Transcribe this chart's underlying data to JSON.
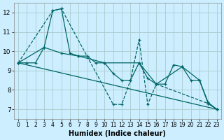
{
  "xlabel": "Humidex (Indice chaleur)",
  "background_color": "#cceeff",
  "grid_color": "#aacccc",
  "line_color": "#006666",
  "xlim": [
    -0.5,
    23.5
  ],
  "ylim": [
    6.5,
    12.5
  ],
  "xticks": [
    0,
    1,
    2,
    3,
    4,
    5,
    6,
    7,
    8,
    9,
    10,
    11,
    12,
    13,
    14,
    15,
    16,
    17,
    18,
    19,
    20,
    21,
    22,
    23
  ],
  "yticks": [
    7,
    8,
    9,
    10,
    11,
    12
  ],
  "series": [
    {
      "x": [
        0,
        1,
        2,
        3,
        4,
        5,
        6,
        7,
        8,
        9,
        10,
        11,
        12,
        13,
        14,
        15,
        16,
        17,
        18,
        19,
        20,
        21,
        22,
        23
      ],
      "y": [
        9.4,
        9.4,
        9.4,
        10.2,
        12.1,
        12.2,
        9.9,
        9.75,
        9.75,
        9.4,
        9.4,
        8.85,
        8.5,
        8.5,
        9.4,
        8.6,
        8.3,
        8.3,
        9.3,
        9.2,
        8.5,
        8.5,
        7.3,
        7.0
      ],
      "linestyle": "-",
      "marker": "+",
      "markersize": 3
    },
    {
      "x": [
        0,
        4,
        5,
        11,
        12,
        13,
        14,
        15,
        16,
        22,
        23
      ],
      "y": [
        9.4,
        12.1,
        12.2,
        7.25,
        7.25,
        8.5,
        10.6,
        7.25,
        8.3,
        7.3,
        7.0
      ],
      "linestyle": "--",
      "marker": "+",
      "markersize": 3
    },
    {
      "x": [
        0,
        23
      ],
      "y": [
        9.4,
        7.0
      ],
      "linestyle": "-",
      "marker": "None",
      "markersize": 0
    },
    {
      "x": [
        0,
        3,
        5,
        7,
        10,
        14,
        16,
        19,
        21,
        22,
        23
      ],
      "y": [
        9.4,
        10.2,
        9.9,
        9.75,
        9.4,
        9.4,
        8.3,
        9.2,
        8.5,
        7.35,
        7.0
      ],
      "linestyle": "-",
      "marker": "+",
      "markersize": 3
    }
  ]
}
